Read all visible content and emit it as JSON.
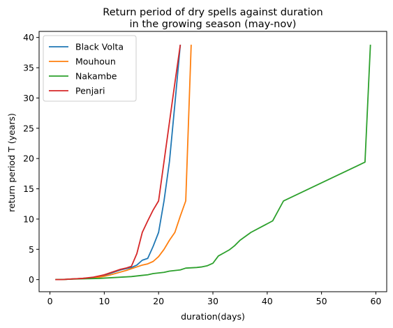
{
  "chart_data": {
    "type": "line",
    "title_lines": [
      "Return period of dry spells against duration",
      "in the growing season (may-nov)"
    ],
    "xlabel": "duration(days)",
    "ylabel": "return period T (years)",
    "xlim": [
      -2,
      62
    ],
    "ylim": [
      -2,
      41
    ],
    "xticks": [
      0,
      10,
      20,
      30,
      40,
      50,
      60
    ],
    "yticks": [
      0,
      5,
      10,
      15,
      20,
      25,
      30,
      35,
      40
    ],
    "xtick_labels": [
      "0",
      "10",
      "20",
      "30",
      "40",
      "50",
      "60"
    ],
    "ytick_labels": [
      "0",
      "5",
      "10",
      "15",
      "20",
      "25",
      "30",
      "35",
      "40"
    ],
    "grid": false,
    "legend_position": "top-left",
    "series": [
      {
        "name": "Black Volta",
        "color": "#1f77b4",
        "x": [
          1,
          2,
          3,
          4,
          5,
          6,
          7,
          8,
          9,
          10,
          11,
          12,
          13,
          14,
          15,
          16,
          17,
          18,
          19,
          20,
          21,
          22,
          23,
          24
        ],
        "y": [
          0.0,
          0.0,
          0.05,
          0.1,
          0.15,
          0.2,
          0.25,
          0.35,
          0.5,
          0.7,
          1.0,
          1.3,
          1.6,
          1.8,
          2.0,
          2.4,
          3.2,
          3.5,
          5.5,
          7.8,
          13.0,
          19.5,
          29.0,
          38.8
        ]
      },
      {
        "name": "Mouhoun",
        "color": "#ff7f0e",
        "x": [
          1,
          2,
          3,
          4,
          5,
          6,
          7,
          8,
          9,
          10,
          11,
          12,
          13,
          14,
          15,
          16,
          17,
          18,
          19,
          20,
          21,
          22,
          23,
          24,
          25,
          26
        ],
        "y": [
          0.0,
          0.0,
          0.05,
          0.1,
          0.15,
          0.2,
          0.25,
          0.3,
          0.4,
          0.55,
          0.75,
          1.0,
          1.25,
          1.5,
          1.8,
          2.1,
          2.4,
          2.6,
          3.0,
          3.8,
          5.0,
          6.5,
          7.8,
          10.5,
          13.0,
          38.8
        ]
      },
      {
        "name": "Nakambe",
        "color": "#2ca02c",
        "x": [
          1,
          3,
          5,
          7,
          9,
          11,
          13,
          15,
          17,
          18,
          19,
          20,
          21,
          22,
          23,
          24,
          25,
          27,
          28,
          29,
          30,
          31,
          32,
          33,
          34,
          35,
          37,
          41,
          43,
          58,
          59
        ],
        "y": [
          0.0,
          0.05,
          0.1,
          0.15,
          0.2,
          0.3,
          0.4,
          0.5,
          0.7,
          0.8,
          1.0,
          1.1,
          1.2,
          1.4,
          1.5,
          1.6,
          1.9,
          2.0,
          2.1,
          2.3,
          2.7,
          3.9,
          4.4,
          4.9,
          5.6,
          6.5,
          7.8,
          9.7,
          13.0,
          19.4,
          38.8
        ]
      },
      {
        "name": "Penjari",
        "color": "#d62728",
        "x": [
          1,
          2,
          3,
          4,
          5,
          6,
          7,
          8,
          9,
          10,
          11,
          12,
          13,
          14,
          15,
          16,
          17,
          18,
          19,
          20,
          21,
          22,
          23,
          24
        ],
        "y": [
          0.0,
          0.0,
          0.05,
          0.1,
          0.15,
          0.2,
          0.3,
          0.4,
          0.6,
          0.8,
          1.1,
          1.4,
          1.7,
          1.9,
          2.2,
          4.3,
          7.8,
          9.7,
          11.5,
          13.0,
          19.5,
          26.0,
          32.5,
          38.8
        ]
      }
    ]
  }
}
